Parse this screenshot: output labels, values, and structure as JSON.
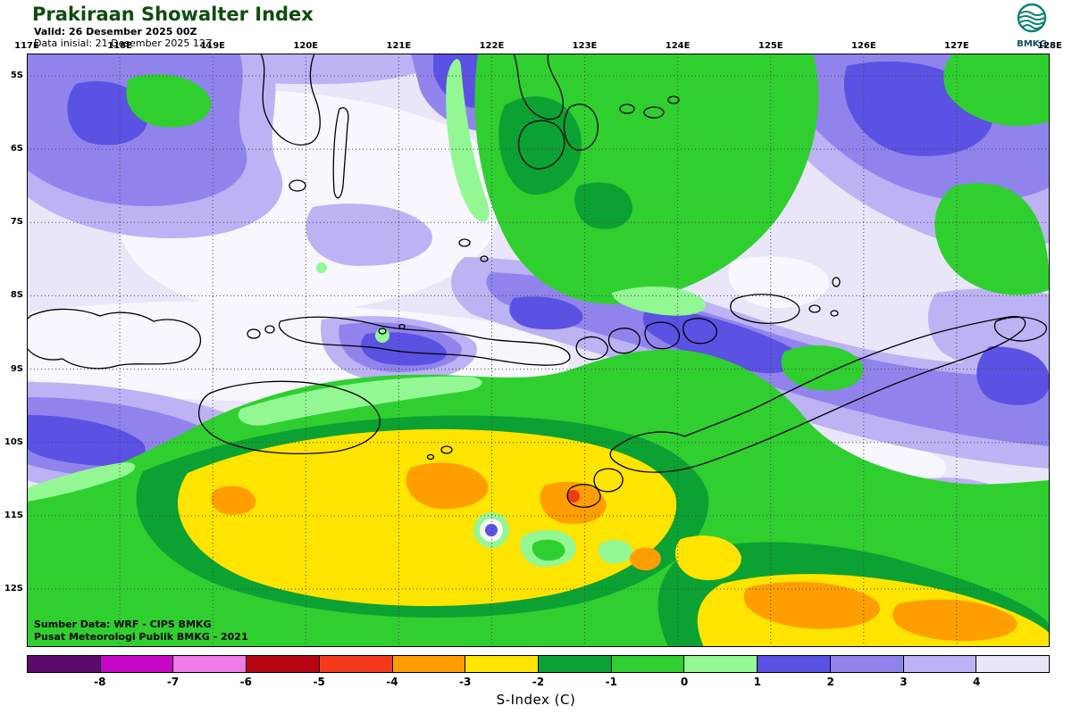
{
  "header": {
    "title": "Prakiraan Showalter Index",
    "valid": "Valid: 26 Desember 2025 00Z",
    "init": "Data inisial: 21 Desember 2025 12Z",
    "title_color": "#0e4d0e",
    "logo_text": "BMKG",
    "logo_color": "#0d8273"
  },
  "map": {
    "lon_labels": [
      "117E",
      "118E",
      "119E",
      "120E",
      "121E",
      "122E",
      "123E",
      "124E",
      "125E",
      "126E",
      "127E",
      "128E"
    ],
    "lat_labels": [
      "5S",
      "6S",
      "7S",
      "8S",
      "9S",
      "10S",
      "11S",
      "12S"
    ],
    "credit_line1": "Sumber Data: WRF - CIPS BMKG",
    "credit_line2": "Pusat Meteorologi Publik BMKG - 2021"
  },
  "legend": {
    "title": "S-Index (C)",
    "tick_values": [
      "-8",
      "-7",
      "-6",
      "-5",
      "-4",
      "-3",
      "-2",
      "-1",
      "0",
      "1",
      "2",
      "3",
      "4"
    ],
    "colors": [
      "#5c0a6e",
      "#c608c6",
      "#f07ae8",
      "#b40511",
      "#f4391b",
      "#ff9e00",
      "#ffe400",
      "#0ca133",
      "#30cf30",
      "#93f893",
      "#5b51e3",
      "#9084ec",
      "#bcb2f4",
      "#e9e6fa"
    ],
    "above_scale_color": "#f8f6fe"
  },
  "chart_data": {
    "type": "heatmap",
    "title": "Prakiraan Showalter Index",
    "variable": "S-Index (C)",
    "valid_time": "26 Desember 2025 00Z",
    "initial_time": "21 Desember 2025 12Z",
    "source": "WRF - CIPS BMKG",
    "lon_range": [
      "117E",
      "128E"
    ],
    "lat_range": [
      "5S",
      "12S"
    ],
    "contour_levels": [
      -8,
      -7,
      -6,
      -5,
      -4,
      -3,
      -2,
      -1,
      0,
      1,
      2,
      3,
      4
    ],
    "palette": [
      "#5c0a6e",
      "#c608c6",
      "#f07ae8",
      "#b40511",
      "#f4391b",
      "#ff9e00",
      "#ffe400",
      "#0ca133",
      "#30cf30",
      "#93f893",
      "#5b51e3",
      "#9084ec",
      "#bcb2f4",
      "#e9e6fa"
    ],
    "legend_position": "bottom",
    "grid": "dotted 1-degree graticule",
    "field_summary": [
      {
        "region": "north-west and north-east (5S-7S)",
        "s_index": "1 to 4 (purple/lavender, stable)"
      },
      {
        "region": "north-centre around SE Sulawesi (121E-124E, 5S-7S)",
        "s_index": "-1 to 1 (green)"
      },
      {
        "region": "central band along 8S-9S (Sumbawa-Flores)",
        "s_index": "> 4 (very pale, most stable)"
      },
      {
        "region": "diagonal band from 122E,7.5S to 128E,9S",
        "s_index": "1 to 3 (blue-purple)"
      },
      {
        "region": "southern belt 10S-12.5S",
        "s_index": "-2 to 0 (green)"
      },
      {
        "region": "south-centre core 119E-124E, 10.5S-12S",
        "s_index": "-3 to -2 (yellow) with -4 to -3 orange patches and a small -5 red spot near 123E,11.3S"
      },
      {
        "region": "south-east corner 124E-128E, 12S-12.5S",
        "s_index": "-4 to -2 (yellow/orange patches)"
      }
    ]
  }
}
